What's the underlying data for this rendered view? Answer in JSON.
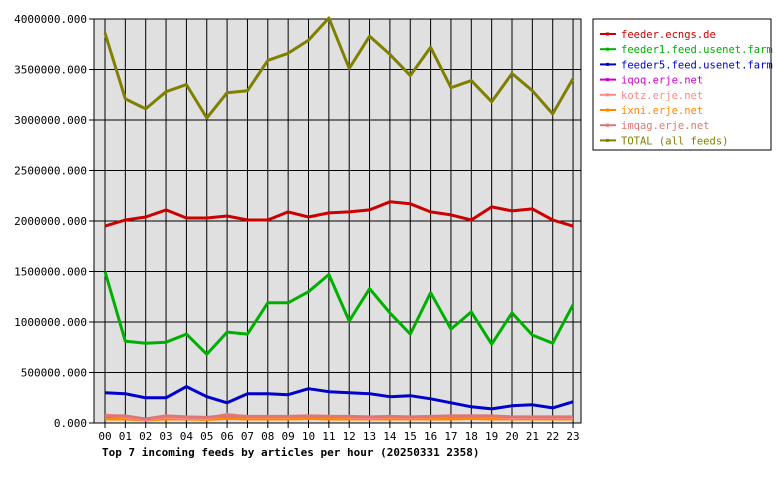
{
  "chart_data": {
    "type": "line",
    "title": "Top 7 incoming feeds by articles per hour (20250331 2358)",
    "xlabel": "",
    "ylabel": "",
    "ylim": [
      0,
      4000000
    ],
    "yticks": [
      "0.000",
      "500000.000",
      "1000000.000",
      "1500000.000",
      "2000000.000",
      "2500000.000",
      "3000000.000",
      "3500000.000",
      "4000000.000"
    ],
    "ytick_values": [
      0,
      500000,
      1000000,
      1500000,
      2000000,
      2500000,
      3000000,
      3500000,
      4000000
    ],
    "categories": [
      "00",
      "01",
      "02",
      "03",
      "04",
      "05",
      "06",
      "07",
      "08",
      "09",
      "10",
      "11",
      "12",
      "13",
      "14",
      "15",
      "16",
      "17",
      "18",
      "19",
      "20",
      "21",
      "22",
      "23"
    ],
    "grid": true,
    "legend_position": "right",
    "plot_background": "#e0e0e0",
    "series": [
      {
        "name": "feeder.ecngs.de",
        "color": "#cc0000",
        "values": [
          1950000,
          2010000,
          2040000,
          2110000,
          2030000,
          2030000,
          2050000,
          2010000,
          2010000,
          2090000,
          2040000,
          2080000,
          2090000,
          2110000,
          2190000,
          2170000,
          2090000,
          2060000,
          2010000,
          2140000,
          2100000,
          2120000,
          2010000,
          1950000
        ]
      },
      {
        "name": "feeder1.feed.usenet.farm",
        "color": "#00b000",
        "values": [
          1500000,
          810000,
          790000,
          800000,
          880000,
          680000,
          900000,
          880000,
          1190000,
          1190000,
          1300000,
          1470000,
          1010000,
          1330000,
          1090000,
          880000,
          1290000,
          930000,
          1100000,
          780000,
          1090000,
          870000,
          790000,
          1170000
        ]
      },
      {
        "name": "feeder5.feed.usenet.farm",
        "color": "#0000cc",
        "values": [
          300000,
          290000,
          250000,
          250000,
          360000,
          260000,
          200000,
          290000,
          290000,
          280000,
          340000,
          310000,
          300000,
          290000,
          260000,
          270000,
          240000,
          200000,
          160000,
          140000,
          170000,
          180000,
          150000,
          210000
        ]
      },
      {
        "name": "iqoq.erje.net",
        "color": "#cc00cc",
        "values": [
          60000,
          60000,
          40000,
          60000,
          55000,
          50000,
          65000,
          60000,
          60000,
          60000,
          65000,
          60000,
          60000,
          55000,
          55000,
          50000,
          55000,
          60000,
          60000,
          60000,
          55000,
          50000,
          50000,
          55000
        ]
      },
      {
        "name": "kotz.erje.net",
        "color": "#ff8888",
        "values": [
          80000,
          60000,
          30000,
          60000,
          50000,
          45000,
          85000,
          60000,
          60000,
          60000,
          70000,
          65000,
          60000,
          50000,
          60000,
          55000,
          60000,
          70000,
          70000,
          65000,
          50000,
          55000,
          55000,
          50000
        ]
      },
      {
        "name": "ixni.erje.net",
        "color": "#ff8800",
        "values": [
          40000,
          40000,
          30000,
          40000,
          40000,
          35000,
          45000,
          40000,
          40000,
          40000,
          45000,
          40000,
          40000,
          40000,
          40000,
          40000,
          40000,
          40000,
          45000,
          40000,
          40000,
          40000,
          40000,
          40000
        ]
      },
      {
        "name": "imqag.erje.net",
        "color": "#dd7777",
        "values": [
          70000,
          70000,
          40000,
          70000,
          60000,
          55000,
          75000,
          65000,
          65000,
          65000,
          70000,
          65000,
          65000,
          60000,
          65000,
          60000,
          65000,
          70000,
          70000,
          70000,
          60000,
          60000,
          60000,
          60000
        ]
      },
      {
        "name": "TOTAL (all feeds)",
        "color": "#808000",
        "values": [
          3860000,
          3210000,
          3110000,
          3280000,
          3350000,
          3020000,
          3270000,
          3290000,
          3590000,
          3660000,
          3790000,
          4010000,
          3510000,
          3830000,
          3650000,
          3440000,
          3720000,
          3320000,
          3390000,
          3180000,
          3460000,
          3290000,
          3060000,
          3410000
        ]
      }
    ]
  }
}
